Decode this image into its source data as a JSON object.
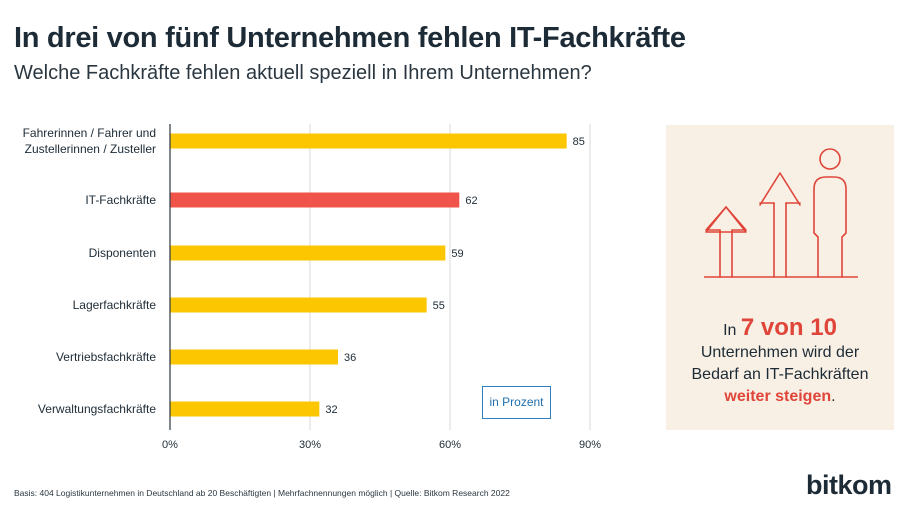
{
  "header": {
    "title": "In drei von fünf Unternehmen fehlen IT-Fachkräfte",
    "subtitle": "Welche Fachkräfte fehlen aktuell speziell in Ihrem Unternehmen?"
  },
  "chart_data": {
    "type": "bar",
    "orientation": "horizontal",
    "categories": [
      [
        "Fahrerinnen / Fahrer und",
        "Zustellerinnen / Zusteller"
      ],
      [
        "IT-Fachkräfte"
      ],
      [
        "Disponenten"
      ],
      [
        "Lagerfachkräfte"
      ],
      [
        "Vertriebsfachkräfte"
      ],
      [
        "Verwaltungsfachkräfte"
      ]
    ],
    "values": [
      85,
      62,
      59,
      55,
      36,
      32
    ],
    "highlight_index": 1,
    "xlim": [
      0,
      90
    ],
    "xticks": [
      0,
      30,
      60,
      90
    ],
    "xtick_labels": [
      "0%",
      "30%",
      "60%",
      "90%"
    ],
    "unit_label": "in Prozent",
    "grid": true,
    "colors": {
      "bar": "#fcc600",
      "highlight": "#f0534a",
      "grid": "#d9d9d9",
      "axis": "#2a3740",
      "text": "#1d2b36"
    }
  },
  "callout": {
    "line1_prefix": "In ",
    "line1_highlight": "7 von 10",
    "line2": "Unternehmen wird der",
    "line3": "Bedarf an IT-Fachkräften",
    "line4_highlight": "weiter steigen",
    "line4_suffix": ".",
    "icon_color": "#e0453a",
    "background": "#f8f0e4"
  },
  "footer": {
    "note": "Basis: 404 Logistikunternehmen in Deutschland ab 20 Beschäftigten | Mehrfachnennungen möglich | Quelle: Bitkom Research 2022",
    "logo": "bitkom"
  }
}
